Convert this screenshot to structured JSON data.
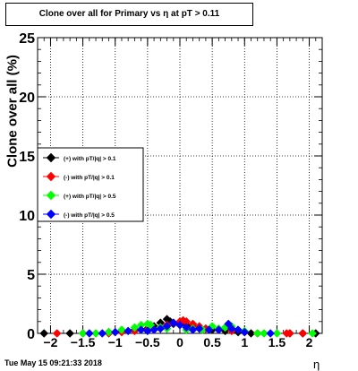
{
  "title": "Clone  over all for Primary vs   η at pT > 0.11",
  "timestamp": "Tue May 15 09:21:33 2018",
  "chart_data": {
    "type": "scatter",
    "ylabel": "Clone  over all (%)",
    "xlabel": "η",
    "xlim": [
      -2.2,
      2.2
    ],
    "ylim": [
      0,
      25
    ],
    "xticks": [
      -2,
      -1.5,
      -1,
      -0.5,
      0,
      0.5,
      1,
      1.5,
      2
    ],
    "xtick_labels": [
      "−2",
      "−1.5",
      "−1",
      "−0.5",
      "0",
      "0.5",
      "1",
      "1.5",
      "2"
    ],
    "yticks": [
      0,
      5,
      10,
      15,
      20,
      25
    ],
    "ytick_labels": [
      "0",
      "5",
      "10",
      "15",
      "20",
      "25"
    ],
    "grid": true,
    "legend_position": "left-middle",
    "series": [
      {
        "name": "(+) with pT/|q| > 0.1",
        "color": "#000000",
        "x": [
          -2.1,
          -1.7,
          -1.5,
          -1.3,
          -1.1,
          -0.9,
          -0.7,
          -0.5,
          -0.4,
          -0.3,
          -0.2,
          -0.15,
          -0.1,
          0.0,
          0.1,
          0.2,
          0.3,
          0.4,
          0.5,
          0.6,
          0.7,
          0.9,
          1.1,
          1.3,
          1.7,
          1.9,
          2.1
        ],
        "y": [
          0,
          0,
          0,
          0,
          0.1,
          0.2,
          0.3,
          0.4,
          0.6,
          0.9,
          1.2,
          1.0,
          0.8,
          0.9,
          0.7,
          0.6,
          0.5,
          0.4,
          0.3,
          0.3,
          0.2,
          0.1,
          0,
          0,
          0,
          0,
          0
        ]
      },
      {
        "name": "(-) with pT/|q| > 0.1",
        "color": "#ff0000",
        "x": [
          -1.9,
          -1.5,
          -1.3,
          -1.1,
          -0.9,
          -0.7,
          -0.5,
          -0.3,
          -0.2,
          -0.1,
          0.0,
          0.05,
          0.1,
          0.2,
          0.3,
          0.4,
          0.6,
          0.8,
          1.0,
          1.2,
          1.65,
          1.7,
          1.9
        ],
        "y": [
          0,
          0,
          0,
          0,
          0.1,
          0.2,
          0.3,
          0.5,
          0.7,
          0.9,
          1.0,
          1.1,
          1.0,
          0.8,
          0.6,
          0.4,
          0.3,
          0.2,
          0.1,
          0,
          0,
          0,
          0
        ]
      },
      {
        "name": "(+) with pT/|q| > 0.5",
        "color": "#00ff00",
        "x": [
          -1.5,
          -1.3,
          -1.1,
          -0.9,
          -0.7,
          -0.6,
          -0.5,
          -0.45,
          -0.3,
          -0.2,
          0.1,
          0.2,
          0.35,
          0.5,
          0.6,
          0.7,
          0.8,
          0.9,
          1.0,
          1.2,
          1.3,
          1.5,
          2.05
        ],
        "y": [
          0,
          0,
          0.1,
          0.3,
          0.5,
          0.7,
          0.8,
          0.7,
          0.5,
          0.4,
          0.3,
          0.4,
          0.3,
          0.6,
          0.4,
          0.5,
          0.6,
          0.3,
          0.2,
          0,
          0,
          0,
          0
        ]
      },
      {
        "name": "(-) with pT/|q| > 0.5",
        "color": "#0000ff",
        "x": [
          -1.4,
          -1.2,
          -1.0,
          -0.8,
          -0.6,
          -0.5,
          -0.4,
          -0.3,
          -0.2,
          -0.1,
          0.0,
          0.1,
          0.2,
          0.3,
          0.45,
          0.6,
          0.75,
          0.8,
          0.9,
          1.0,
          1.4
        ],
        "y": [
          0,
          0,
          0.1,
          0.2,
          0.3,
          0.2,
          0.3,
          0.4,
          0.6,
          0.9,
          0.7,
          0.5,
          0.3,
          0.4,
          0.3,
          0.3,
          0.8,
          0.4,
          0.3,
          0.1,
          0
        ]
      }
    ]
  }
}
